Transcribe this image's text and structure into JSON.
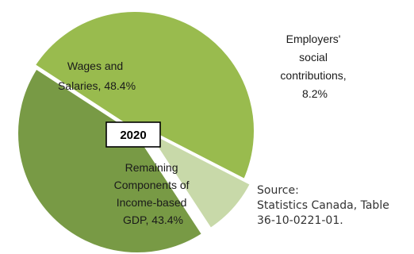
{
  "chart_data": {
    "type": "pie",
    "title": "",
    "center_label": "2020",
    "slices": [
      {
        "name": "Wages and Salaries",
        "value": 48.4,
        "color": "#99bb4e",
        "label_lines": [
          "Wages and",
          "Salaries, 48.4%"
        ]
      },
      {
        "name": "Employers' social contributions",
        "value": 8.2,
        "color": "#c8d9a9",
        "label_lines": [
          "Employers'",
          "social",
          "contributions,",
          "8.2%"
        ]
      },
      {
        "name": "Remaining Components of Income-based GDP",
        "value": 43.4,
        "color": "#789a45",
        "label_lines": [
          "Remaining",
          "Components of",
          "Income-based",
          "GDP, 43.4%"
        ]
      }
    ]
  },
  "source": {
    "lines": [
      "Source:",
      "Statistics Canada, Table",
      "36-10-0221-01."
    ]
  }
}
